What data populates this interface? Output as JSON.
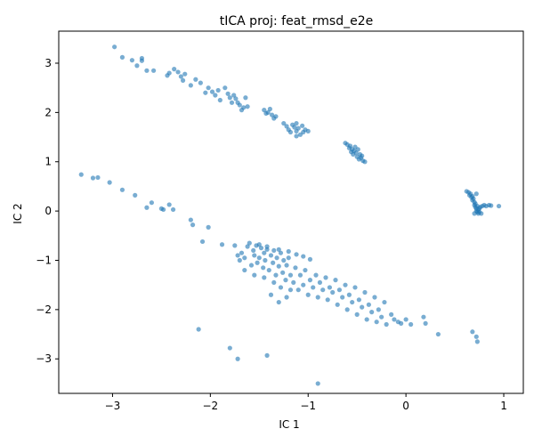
{
  "chart_data": {
    "type": "scatter",
    "title": "tICA proj: feat_rmsd_e2e",
    "xlabel": "IC 1",
    "ylabel": "IC 2",
    "xlim": [
      -3.55,
      1.2
    ],
    "ylim": [
      -3.7,
      3.65
    ],
    "x_ticks": [
      -3,
      -2,
      -1,
      0,
      1
    ],
    "y_ticks": [
      -3,
      -2,
      -1,
      0,
      1,
      2,
      3
    ],
    "x_tick_labels": [
      "−3",
      "−2",
      "−1",
      "0",
      "1"
    ],
    "y_tick_labels": [
      "−3",
      "−2",
      "−1",
      "0",
      "1",
      "2",
      "3"
    ],
    "grid": false,
    "marker_color": "#1f77b4",
    "marker_alpha": 0.6,
    "points": [
      [
        -2.98,
        3.33
      ],
      [
        -2.9,
        3.12
      ],
      [
        -2.8,
        3.06
      ],
      [
        -2.75,
        2.95
      ],
      [
        -2.7,
        3.1
      ],
      [
        -2.7,
        3.05
      ],
      [
        -2.65,
        2.85
      ],
      [
        -2.58,
        2.85
      ],
      [
        -2.44,
        2.75
      ],
      [
        -2.42,
        2.8
      ],
      [
        -2.37,
        2.88
      ],
      [
        -2.33,
        2.82
      ],
      [
        -2.3,
        2.73
      ],
      [
        -2.28,
        2.65
      ],
      [
        -2.26,
        2.78
      ],
      [
        -2.2,
        2.55
      ],
      [
        -2.15,
        2.67
      ],
      [
        -2.1,
        2.6
      ],
      [
        -2.05,
        2.4
      ],
      [
        -2.02,
        2.5
      ],
      [
        -1.98,
        2.42
      ],
      [
        -1.95,
        2.35
      ],
      [
        -1.92,
        2.45
      ],
      [
        -1.9,
        2.25
      ],
      [
        -1.85,
        2.5
      ],
      [
        -1.82,
        2.38
      ],
      [
        -1.8,
        2.3
      ],
      [
        -1.78,
        2.2
      ],
      [
        -1.76,
        2.35
      ],
      [
        -1.74,
        2.28
      ],
      [
        -1.72,
        2.2
      ],
      [
        -1.7,
        2.15
      ],
      [
        -1.68,
        2.05
      ],
      [
        -1.66,
        2.1
      ],
      [
        -1.64,
        2.3
      ],
      [
        -1.62,
        2.12
      ],
      [
        -1.45,
        2.05
      ],
      [
        -1.43,
        1.98
      ],
      [
        -1.41,
        2.0
      ],
      [
        -1.39,
        2.07
      ],
      [
        -1.37,
        1.95
      ],
      [
        -1.35,
        1.88
      ],
      [
        -1.33,
        1.92
      ],
      [
        -1.25,
        1.78
      ],
      [
        -1.22,
        1.72
      ],
      [
        -1.2,
        1.65
      ],
      [
        -1.18,
        1.6
      ],
      [
        -1.16,
        1.75
      ],
      [
        -1.14,
        1.7
      ],
      [
        -1.12,
        1.78
      ],
      [
        -1.12,
        1.62
      ],
      [
        -1.1,
        1.68
      ],
      [
        -1.08,
        1.55
      ],
      [
        -1.06,
        1.73
      ],
      [
        -1.05,
        1.6
      ],
      [
        -1.03,
        1.65
      ],
      [
        -1.0,
        1.62
      ],
      [
        -1.12,
        1.52
      ],
      [
        -0.62,
        1.38
      ],
      [
        -0.6,
        1.35
      ],
      [
        -0.58,
        1.28
      ],
      [
        -0.57,
        1.32
      ],
      [
        -0.56,
        1.2
      ],
      [
        -0.55,
        1.25
      ],
      [
        -0.54,
        1.15
      ],
      [
        -0.53,
        1.22
      ],
      [
        -0.52,
        1.3
      ],
      [
        -0.51,
        1.18
      ],
      [
        -0.5,
        1.1
      ],
      [
        -0.49,
        1.25
      ],
      [
        -0.48,
        1.05
      ],
      [
        -0.47,
        1.15
      ],
      [
        -0.46,
        1.08
      ],
      [
        -0.45,
        1.12
      ],
      [
        -0.44,
        1.02
      ],
      [
        -0.42,
        1.0
      ],
      [
        0.62,
        0.4
      ],
      [
        0.64,
        0.38
      ],
      [
        0.65,
        0.32
      ],
      [
        0.66,
        0.35
      ],
      [
        0.67,
        0.28
      ],
      [
        0.68,
        0.3
      ],
      [
        0.68,
        0.22
      ],
      [
        0.69,
        0.25
      ],
      [
        0.7,
        0.18
      ],
      [
        0.7,
        0.12
      ],
      [
        0.71,
        0.15
      ],
      [
        0.71,
        0.08
      ],
      [
        0.72,
        0.05
      ],
      [
        0.72,
        0.0
      ],
      [
        0.73,
        -0.02
      ],
      [
        0.73,
        0.1
      ],
      [
        0.74,
        0.02
      ],
      [
        0.74,
        -0.05
      ],
      [
        0.75,
        0.05
      ],
      [
        0.75,
        -0.02
      ],
      [
        0.76,
        0.08
      ],
      [
        0.77,
        -0.05
      ],
      [
        0.78,
        0.1
      ],
      [
        0.8,
        0.12
      ],
      [
        0.82,
        0.1
      ],
      [
        0.85,
        0.12
      ],
      [
        0.87,
        0.11
      ],
      [
        0.95,
        0.1
      ],
      [
        0.7,
        -0.05
      ],
      [
        0.72,
        0.35
      ],
      [
        -3.32,
        0.74
      ],
      [
        -3.2,
        0.67
      ],
      [
        -3.15,
        0.68
      ],
      [
        -3.03,
        0.58
      ],
      [
        -2.9,
        0.43
      ],
      [
        -2.77,
        0.32
      ],
      [
        -2.65,
        0.07
      ],
      [
        -2.6,
        0.17
      ],
      [
        -2.5,
        0.05
      ],
      [
        -2.48,
        0.03
      ],
      [
        -2.42,
        0.13
      ],
      [
        -2.38,
        0.03
      ],
      [
        -2.2,
        -0.18
      ],
      [
        -2.18,
        -0.28
      ],
      [
        -2.02,
        -0.33
      ],
      [
        -2.08,
        -0.62
      ],
      [
        -1.88,
        -0.68
      ],
      [
        -1.75,
        -0.7
      ],
      [
        -1.72,
        -0.9
      ],
      [
        -1.7,
        -1.0
      ],
      [
        -1.68,
        -0.85
      ],
      [
        -1.65,
        -0.95
      ],
      [
        -1.62,
        -0.72
      ],
      [
        -1.6,
        -0.65
      ],
      [
        -1.58,
        -1.1
      ],
      [
        -1.56,
        -0.8
      ],
      [
        -1.55,
        -0.9
      ],
      [
        -1.53,
        -0.7
      ],
      [
        -1.52,
        -1.05
      ],
      [
        -1.5,
        -0.95
      ],
      [
        -1.48,
        -0.75
      ],
      [
        -1.46,
        -1.15
      ],
      [
        -1.45,
        -0.85
      ],
      [
        -1.44,
        -1.0
      ],
      [
        -1.42,
        -0.78
      ],
      [
        -1.4,
        -1.2
      ],
      [
        -1.38,
        -0.9
      ],
      [
        -1.36,
        -1.05
      ],
      [
        -1.35,
        -0.8
      ],
      [
        -1.33,
        -1.3
      ],
      [
        -1.32,
        -0.95
      ],
      [
        -1.3,
        -1.12
      ],
      [
        -1.28,
        -0.85
      ],
      [
        -1.26,
        -1.25
      ],
      [
        -1.25,
        -1.0
      ],
      [
        -1.23,
        -1.4
      ],
      [
        -1.22,
        -1.1
      ],
      [
        -1.2,
        -0.95
      ],
      [
        -1.18,
        -1.3
      ],
      [
        -1.15,
        -1.45
      ],
      [
        -1.13,
        -1.15
      ],
      [
        -1.1,
        -1.6
      ],
      [
        -1.08,
        -1.3
      ],
      [
        -1.05,
        -1.5
      ],
      [
        -1.03,
        -1.2
      ],
      [
        -1.0,
        -1.7
      ],
      [
        -0.98,
        -1.4
      ],
      [
        -0.95,
        -1.55
      ],
      [
        -0.92,
        -1.3
      ],
      [
        -0.9,
        -1.75
      ],
      [
        -0.88,
        -1.45
      ],
      [
        -0.85,
        -1.6
      ],
      [
        -0.82,
        -1.35
      ],
      [
        -0.8,
        -1.8
      ],
      [
        -0.78,
        -1.55
      ],
      [
        -0.75,
        -1.65
      ],
      [
        -0.72,
        -1.4
      ],
      [
        -0.7,
        -1.9
      ],
      [
        -0.68,
        -1.6
      ],
      [
        -0.65,
        -1.75
      ],
      [
        -0.62,
        -1.5
      ],
      [
        -0.6,
        -2.0
      ],
      [
        -0.58,
        -1.7
      ],
      [
        -0.55,
        -1.85
      ],
      [
        -0.52,
        -1.55
      ],
      [
        -0.5,
        -2.1
      ],
      [
        -0.48,
        -1.8
      ],
      [
        -0.45,
        -1.95
      ],
      [
        -0.42,
        -1.65
      ],
      [
        -0.4,
        -2.2
      ],
      [
        -0.38,
        -1.9
      ],
      [
        -0.35,
        -2.05
      ],
      [
        -0.32,
        -1.75
      ],
      [
        -0.3,
        -2.25
      ],
      [
        -0.28,
        -2.0
      ],
      [
        -0.25,
        -2.15
      ],
      [
        -0.22,
        -1.85
      ],
      [
        -0.2,
        -2.3
      ],
      [
        -0.15,
        -2.1
      ],
      [
        -0.12,
        -2.2
      ],
      [
        -0.08,
        -2.25
      ],
      [
        -0.05,
        -2.28
      ],
      [
        0.0,
        -2.2
      ],
      [
        0.05,
        -2.3
      ],
      [
        0.18,
        -2.15
      ],
      [
        0.2,
        -2.28
      ],
      [
        0.33,
        -2.5
      ],
      [
        -1.65,
        -1.2
      ],
      [
        -1.55,
        -1.3
      ],
      [
        -1.45,
        -1.35
      ],
      [
        -1.35,
        -1.45
      ],
      [
        -1.28,
        -1.55
      ],
      [
        -1.22,
        -1.75
      ],
      [
        -1.18,
        -1.6
      ],
      [
        -1.3,
        -1.85
      ],
      [
        -1.38,
        -1.7
      ],
      [
        -1.5,
        -0.68
      ],
      [
        -1.42,
        -0.72
      ],
      [
        -1.3,
        -0.78
      ],
      [
        -1.2,
        -0.82
      ],
      [
        -1.12,
        -0.88
      ],
      [
        -1.05,
        -0.92
      ],
      [
        -0.98,
        -0.98
      ],
      [
        -2.12,
        -2.4
      ],
      [
        -1.8,
        -2.78
      ],
      [
        -1.72,
        -3.0
      ],
      [
        -1.42,
        -2.93
      ],
      [
        -0.9,
        -3.5
      ],
      [
        0.68,
        -2.45
      ],
      [
        0.72,
        -2.55
      ],
      [
        0.73,
        -2.65
      ]
    ]
  }
}
